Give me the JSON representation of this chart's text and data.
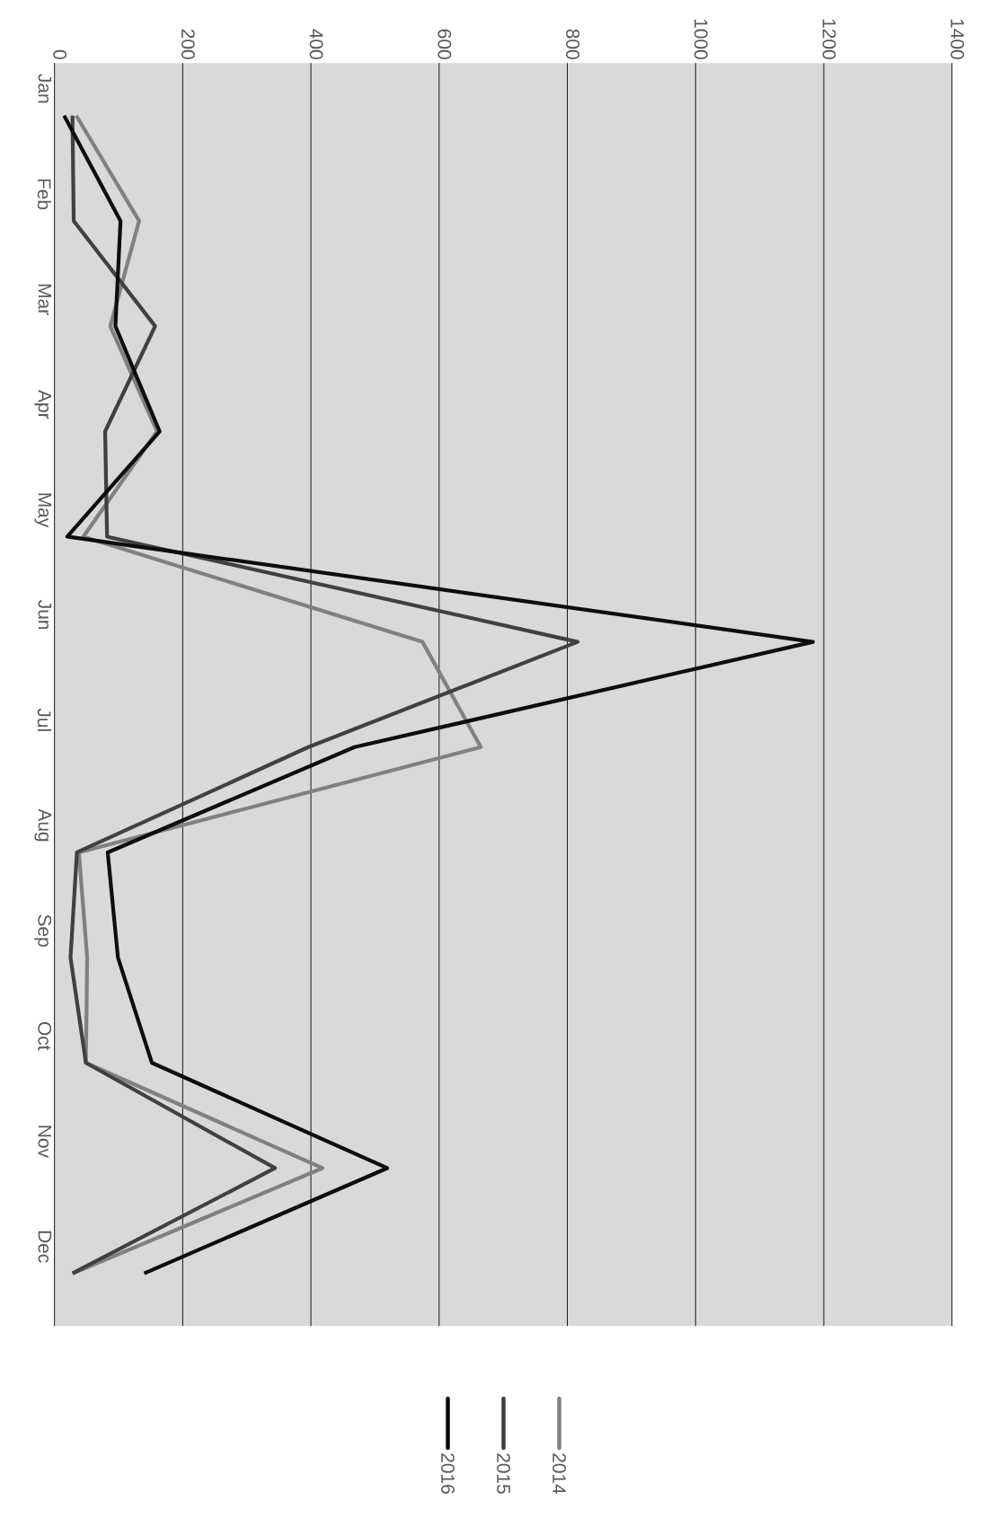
{
  "chart_data": {
    "type": "line",
    "orientation": "horizontal",
    "categories": [
      "Jan",
      "Feb",
      "Mar",
      "Apr",
      "May",
      "Jun",
      "Jul",
      "Aug",
      "Sep",
      "Oct",
      "Nov",
      "Dec"
    ],
    "series": [
      {
        "name": "2014",
        "color": "#808080",
        "values": [
          34,
          132,
          87,
          160,
          45,
          574,
          665,
          38,
          51,
          49,
          418,
          29
        ]
      },
      {
        "name": "2015",
        "color": "#404040",
        "values": [
          28,
          30,
          157,
          79,
          82,
          816,
          396,
          35,
          25,
          49,
          344,
          28
        ]
      },
      {
        "name": "2016",
        "color": "#0d0d0d",
        "values": [
          15,
          103,
          95,
          164,
          20,
          1183,
          468,
          83,
          99,
          152,
          519,
          140
        ]
      }
    ],
    "xlim": [
      0,
      1400
    ],
    "xticks": [
      0,
      200,
      400,
      600,
      800,
      1000,
      1200,
      1400
    ],
    "grid": "x",
    "legend": "bottom",
    "marker": "none"
  }
}
